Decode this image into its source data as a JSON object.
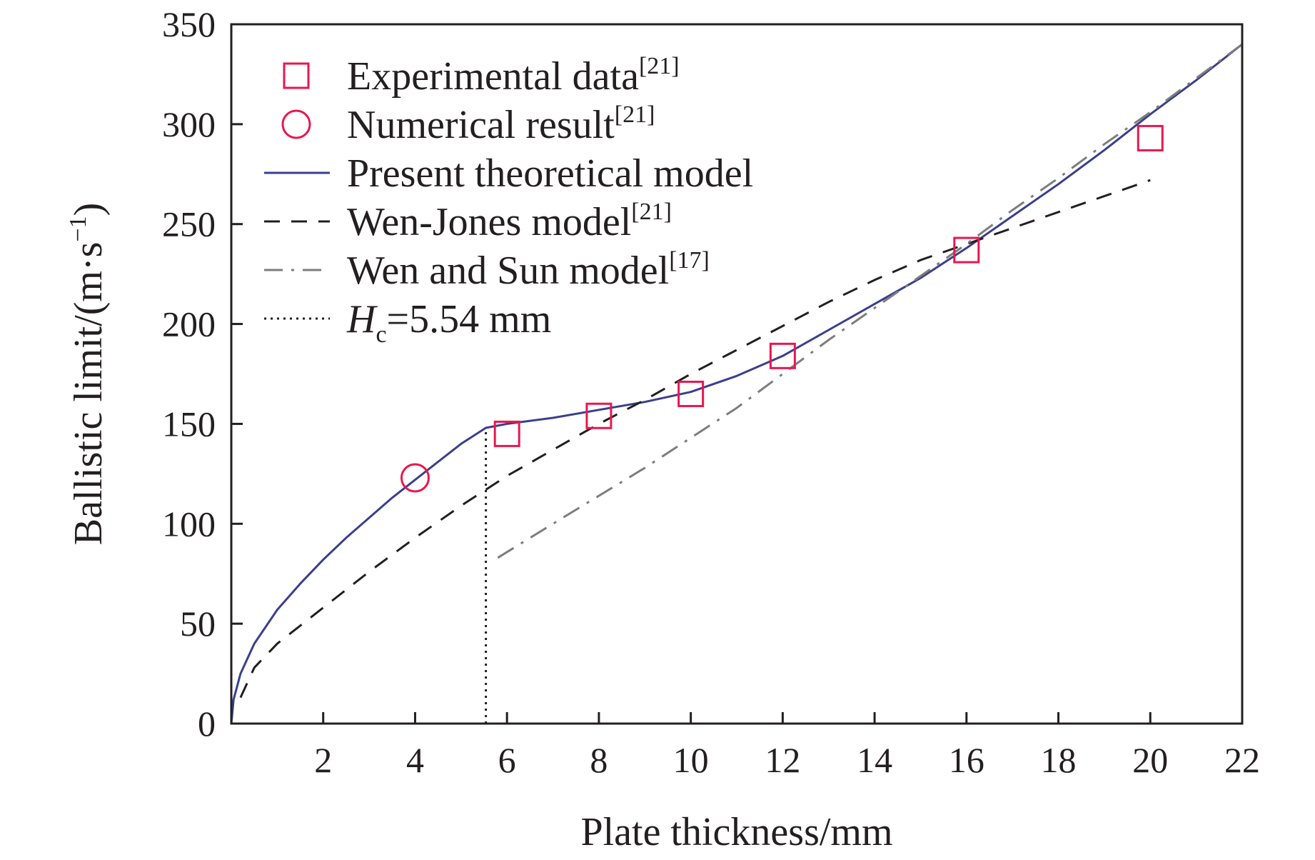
{
  "chart_data": {
    "type": "line",
    "title": "",
    "xlabel": "Plate thickness/mm",
    "ylabel": {
      "main": "Ballistic limit/(m·s",
      "exponent": "−1",
      "close": ")"
    },
    "xlim": [
      0,
      22
    ],
    "ylim": [
      0,
      350
    ],
    "xticks": [
      2,
      4,
      6,
      8,
      10,
      12,
      14,
      16,
      18,
      20,
      22
    ],
    "yticks": [
      0,
      50,
      100,
      150,
      200,
      250,
      300,
      350
    ],
    "grid": false,
    "legend_position": "top-left",
    "legend": [
      {
        "key": "experimental",
        "label": "Experimental data",
        "ref": "[21]"
      },
      {
        "key": "numerical",
        "label": "Numerical result",
        "ref": "[21]"
      },
      {
        "key": "present",
        "label": "Present theoretical model",
        "ref": ""
      },
      {
        "key": "wen_jones",
        "label": "Wen-Jones model",
        "ref": "[21]"
      },
      {
        "key": "wen_sun",
        "label": "Wen and Sun model",
        "ref": "[17]"
      },
      {
        "key": "hc",
        "label_var": "H",
        "label_sub": "c",
        "label_rest": "=5.54 mm"
      }
    ],
    "series": [
      {
        "name": "Experimental data",
        "kind": "scatter",
        "marker": "square",
        "color": "#e8174f",
        "x": [
          6,
          8,
          10,
          12,
          16,
          20
        ],
        "y": [
          145,
          154,
          165,
          184,
          237,
          293
        ]
      },
      {
        "name": "Numerical result",
        "kind": "scatter",
        "marker": "circle",
        "color": "#e8174f",
        "x": [
          4
        ],
        "y": [
          123
        ]
      },
      {
        "name": "Present theoretical model",
        "kind": "line",
        "style": "solid",
        "color": "#3b3f8c",
        "x": [
          0,
          0.05,
          0.2,
          0.5,
          1,
          1.5,
          2,
          2.5,
          3,
          3.5,
          4,
          4.5,
          5,
          5.54,
          6,
          7,
          8,
          9,
          10,
          11,
          12,
          13,
          14,
          15,
          16,
          17,
          18,
          19,
          20,
          21,
          22
        ],
        "y": [
          0,
          12,
          25,
          40,
          57,
          70,
          82,
          93,
          103,
          113,
          122,
          131,
          140,
          148,
          150,
          153,
          157,
          161,
          166,
          174,
          184,
          197,
          210,
          223,
          238,
          254,
          270,
          287,
          305,
          322,
          340
        ]
      },
      {
        "name": "Wen-Jones model",
        "kind": "line",
        "style": "dashed",
        "color": "#231f20",
        "x": [
          0.2,
          0.5,
          1,
          2,
          3,
          4,
          5,
          6,
          7,
          8,
          9,
          10,
          11,
          12,
          13,
          14,
          15,
          16,
          17,
          18,
          19,
          20
        ],
        "y": [
          13,
          28,
          40,
          58,
          76,
          93,
          109,
          124,
          137,
          150,
          162,
          175,
          187,
          199,
          211,
          222,
          232,
          240,
          248,
          256,
          264,
          272
        ]
      },
      {
        "name": "Wen and Sun model",
        "kind": "line",
        "style": "dashdot",
        "color": "#7d7d7d",
        "x": [
          5.8,
          7,
          8,
          9,
          10,
          11,
          12,
          13,
          14,
          15,
          16,
          17,
          18,
          19,
          20,
          21,
          22
        ],
        "y": [
          83,
          100,
          114,
          128,
          143,
          158,
          175,
          192,
          208,
          224,
          240,
          257,
          273,
          290,
          306,
          323,
          340
        ]
      },
      {
        "name": "Hc=5.54 mm",
        "kind": "vline",
        "style": "dotted",
        "color": "#231f20",
        "x": [
          5.54,
          5.54
        ],
        "y": [
          0,
          148
        ]
      }
    ]
  }
}
